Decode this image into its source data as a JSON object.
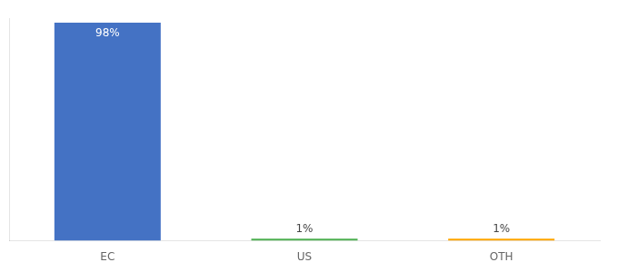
{
  "chart_data": {
    "type": "bar",
    "categories": [
      "EC",
      "US",
      "OTH"
    ],
    "values": [
      98,
      1,
      1
    ],
    "value_labels": [
      "98%",
      "1%",
      "1%"
    ],
    "data_labels": true,
    "colors": [
      "#4472C4",
      "#4CAF50",
      "#FFA500"
    ],
    "ylim": [
      0,
      100
    ],
    "grid": false,
    "tick_labels": "x"
  }
}
